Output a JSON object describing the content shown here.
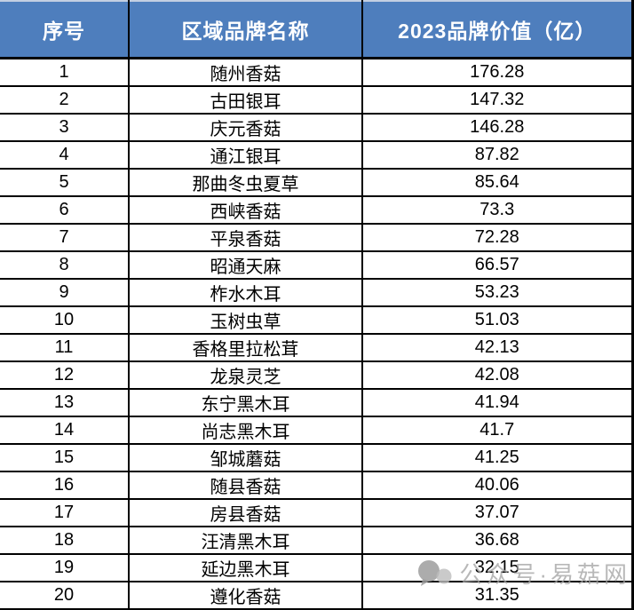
{
  "chart_data": {
    "type": "table",
    "columns": [
      "序号",
      "区域品牌名称",
      "2023品牌价值（亿）"
    ],
    "rows": [
      [
        "1",
        "随州香菇",
        "176.28"
      ],
      [
        "2",
        "古田银耳",
        "147.32"
      ],
      [
        "3",
        "庆元香菇",
        "146.28"
      ],
      [
        "4",
        "通江银耳",
        "87.82"
      ],
      [
        "5",
        "那曲冬虫夏草",
        "85.64"
      ],
      [
        "6",
        "西峡香菇",
        "73.3"
      ],
      [
        "7",
        "平泉香菇",
        "72.28"
      ],
      [
        "8",
        "昭通天麻",
        "66.57"
      ],
      [
        "9",
        "柞水木耳",
        "53.23"
      ],
      [
        "10",
        "玉树虫草",
        "51.03"
      ],
      [
        "11",
        "香格里拉松茸",
        "42.13"
      ],
      [
        "12",
        "龙泉灵芝",
        "42.08"
      ],
      [
        "13",
        "东宁黑木耳",
        "41.94"
      ],
      [
        "14",
        "尚志黑木耳",
        "41.7"
      ],
      [
        "15",
        "邹城蘑菇",
        "41.25"
      ],
      [
        "16",
        "随县香菇",
        "40.06"
      ],
      [
        "17",
        "房县香菇",
        "37.07"
      ],
      [
        "18",
        "汪清黑木耳",
        "36.68"
      ],
      [
        "19",
        "延边黑木耳",
        "32.15"
      ],
      [
        "20",
        "遵化香菇",
        "31.35"
      ]
    ],
    "legend": "none",
    "grid": "solid-black-borders"
  },
  "watermark": {
    "icon": "wechat-official-account-icon",
    "text": "公众号·易菇网"
  },
  "colors": {
    "header_bg": "#4E7EBD",
    "header_text": "#FFFFFF",
    "border": "#000000",
    "row_bg": "#FFFFFF",
    "watermark_gray": "#A4A4A4"
  }
}
